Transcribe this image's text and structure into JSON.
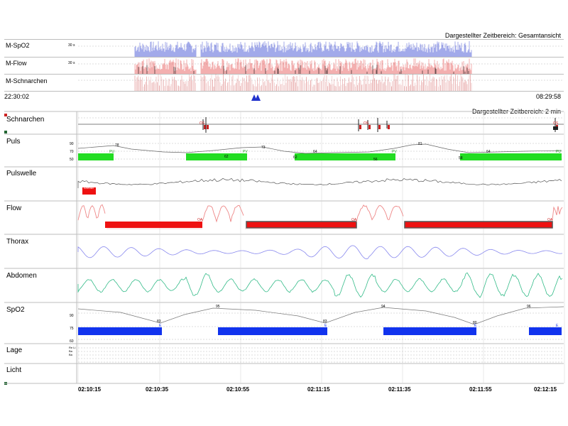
{
  "overview": {
    "range_label": "Dargestellter Zeitbereich: Gesamtansicht",
    "rows": [
      {
        "label": "M-SpO2",
        "scale": "30 s"
      },
      {
        "label": "M-Flow",
        "scale": "30 s"
      },
      {
        "label": "M-Schnarchen",
        "scale": ""
      }
    ],
    "start_time": "22:30:02",
    "end_time": "08:29:58"
  },
  "detail": {
    "range_label": "Dargestellter Zeitbereich: 2 min",
    "channels": {
      "schnarchen": {
        "label": "Schnarchen",
        "marks": [
          "OS",
          "OS",
          "OS"
        ]
      },
      "puls": {
        "label": "Puls",
        "scale": [
          "90",
          "70",
          "50"
        ],
        "values": [
          "78",
          "73",
          "64",
          "81",
          "64",
          "62",
          "56",
          "58",
          "62"
        ],
        "markers": [
          "PU",
          "PV",
          "PV",
          "PU"
        ]
      },
      "pulswelle": {
        "label": "Pulswelle",
        "mark": "Artefakt"
      },
      "flow": {
        "label": "Flow",
        "events": [
          "OA",
          "OA",
          "OA"
        ]
      },
      "thorax": {
        "label": "Thorax"
      },
      "abdomen": {
        "label": "Abdomen"
      },
      "spo2": {
        "label": "SpO2",
        "scale": [
          "90",
          "75",
          "60"
        ],
        "values": [
          "95",
          "94",
          "96",
          "83",
          "83",
          "80"
        ],
        "desat_label": "E"
      },
      "lage": {
        "label": "Lage",
        "scale": "Re Li Ba Ba"
      },
      "licht": {
        "label": "Licht"
      }
    },
    "time_axis": [
      "02:10:15",
      "02:10:35",
      "02:10:55",
      "02:11:15",
      "02:11:35",
      "02:11:55",
      "02:12:15"
    ]
  },
  "colors": {
    "spo2_overview": "#2233cc",
    "flow_overview": "#dd2222",
    "puls_bar": "#22dd22",
    "flow_event": "#ee1111",
    "spo2_event": "#1133ee",
    "thorax": "#8888ee",
    "abdomen": "#33bb88",
    "pulswelle": "#555555"
  }
}
